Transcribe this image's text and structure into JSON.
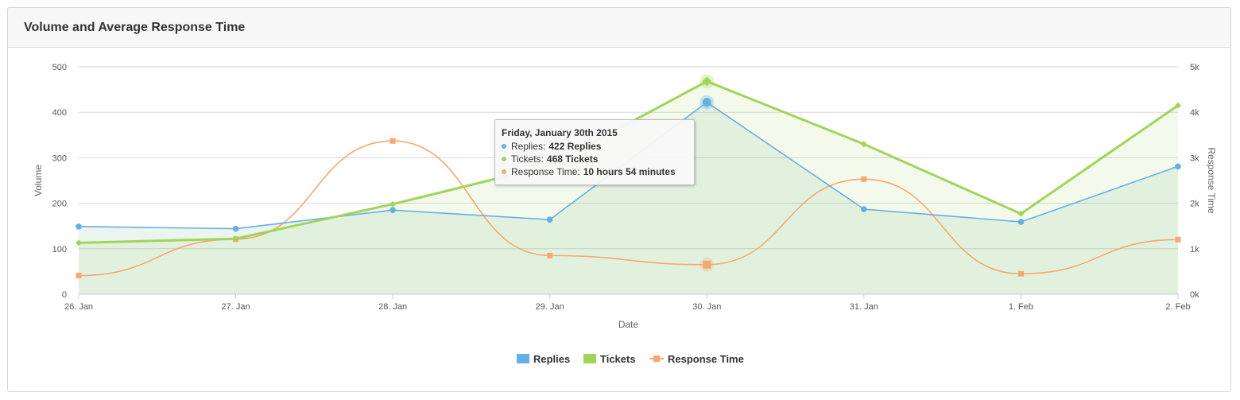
{
  "panel": {
    "title": "Volume and Average Response Time"
  },
  "colors": {
    "replies": "#66afe4",
    "tickets": "#a2d45a",
    "response": "#f4a872",
    "grid": "#d8d8d8"
  },
  "chart_data": {
    "type": "line",
    "categories": [
      "26. Jan",
      "27. Jan",
      "28. Jan",
      "29. Jan",
      "30. Jan",
      "31. Jan",
      "1. Feb",
      "2. Feb"
    ],
    "xlabel": "Date",
    "ylabel": "Volume",
    "ylabel_right": "Response Time",
    "ylim": [
      0,
      500
    ],
    "ylim_right": [
      0,
      5000
    ],
    "yticks": [
      "0",
      "100",
      "200",
      "300",
      "400",
      "500"
    ],
    "yticks_right": [
      "0k",
      "1k",
      "2k",
      "3k",
      "4k",
      "5k"
    ],
    "grid": true,
    "legend_position": "bottom-center",
    "series": [
      {
        "name": "Replies",
        "axis": "left",
        "type": "area",
        "values": [
          149,
          144,
          185,
          164,
          422,
          187,
          159,
          281
        ]
      },
      {
        "name": "Tickets",
        "axis": "left",
        "type": "area",
        "values": [
          113,
          122,
          198,
          283,
          468,
          330,
          177,
          415
        ]
      },
      {
        "name": "Response Time",
        "axis": "right",
        "type": "spline",
        "values": [
          410,
          1210,
          3370,
          850,
          650,
          2530,
          450,
          1200
        ]
      }
    ],
    "highlight_index": 4
  },
  "tooltip": {
    "title": "Friday, January 30th 2015",
    "rows": [
      {
        "label": "Replies:",
        "value": "422 Replies"
      },
      {
        "label": "Tickets:",
        "value": "468 Tickets"
      },
      {
        "label": "Response Time:",
        "value": "10 hours 54 minutes"
      }
    ]
  }
}
